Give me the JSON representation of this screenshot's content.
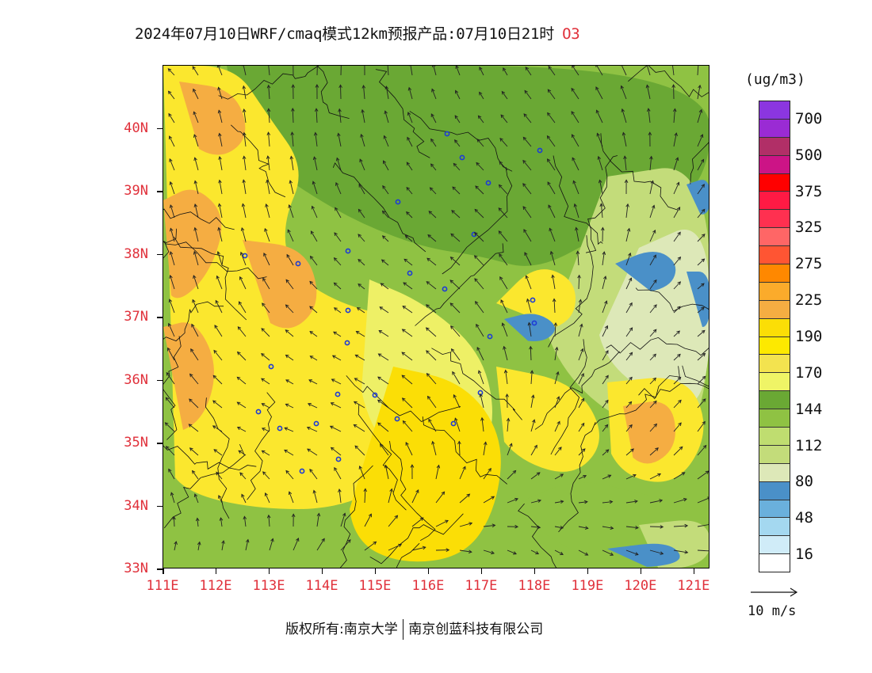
{
  "header": {
    "title": "2024年07月10日WRF/cmaq模式12km预报产品:07月10日21时",
    "pollutant": "O3"
  },
  "map": {
    "lat_labels": [
      "40N",
      "39N",
      "38N",
      "37N",
      "36N",
      "35N",
      "34N",
      "33N"
    ],
    "lon_labels": [
      "111E",
      "112E",
      "113E",
      "114E",
      "115E",
      "116E",
      "117E",
      "118E",
      "119E",
      "120E",
      "121E"
    ],
    "extent": {
      "lon_min": 111,
      "lon_max": 121.3,
      "lat_min": 33,
      "lat_max": 41
    },
    "colors": {
      "c144": "#6aa834",
      "c112": "#8fc243",
      "c80": "#c3dc7a",
      "c48": "#dde8b8",
      "c16": "#4a90c8",
      "c170": "#eef066",
      "c190": "#fbe72e",
      "c225": "#fbde06",
      "c275": "#f5ad42"
    }
  },
  "legend": {
    "unit": "(ug/m3)",
    "colors": [
      "#8b36e0",
      "#9a2bd4",
      "#b12f67",
      "#cc1486",
      "#ff0000",
      "#ff1a44",
      "#ff3050",
      "#ff6666",
      "#ff5533",
      "#ff8800",
      "#fbab2b",
      "#f5ad42",
      "#fbde06",
      "#fde900",
      "#f3e34f",
      "#eff466",
      "#6aa834",
      "#8fc243",
      "#bfdd70",
      "#c3dc7a",
      "#dde8b8",
      "#4a90c8",
      "#6ab0dc",
      "#a4d8f0",
      "#d0ecf8",
      "#ffffff"
    ],
    "labels": [
      "700",
      "500",
      "375",
      "325",
      "275",
      "225",
      "190",
      "170",
      "144",
      "112",
      "80",
      "48",
      "16"
    ]
  },
  "wind_reference": {
    "label": "10 m/s"
  },
  "footer": {
    "copyright_prefix": "版权所有:南京大学",
    "copyright_suffix": "南京创蓝科技有限公司"
  }
}
